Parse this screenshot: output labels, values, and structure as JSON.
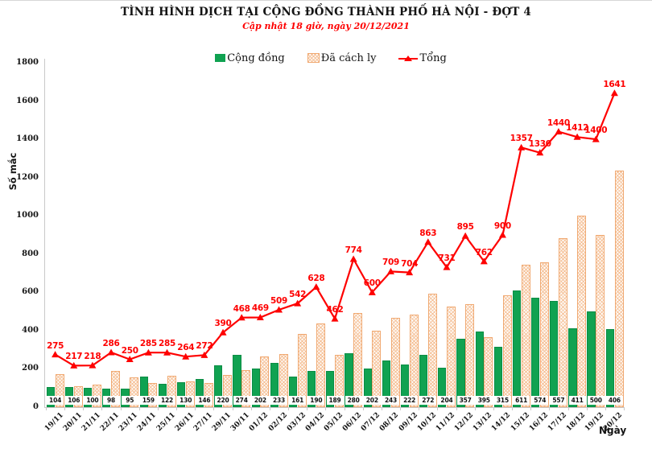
{
  "colors": {
    "bar_green": "#10a251",
    "bar_green_border": "#0b8c44",
    "bar_orange_border": "#f0a870",
    "bar_orange_pattern": "#f5c299",
    "line_red": "#fe0000",
    "axis_gray": "#c9c9c9",
    "text_black": "#141414"
  },
  "chart_data": {
    "type": "combo",
    "title": "TÌNH HÌNH DỊCH TẠI CỘNG ĐỒNG THÀNH PHỐ HÀ NỘI - ĐỢT 4",
    "subtitle": "Cập nhật 18 giờ, ngày 20/12/2021",
    "xlabel": "Ngày",
    "ylabel": "Số mắc",
    "ylim": [
      0,
      1800
    ],
    "ytick_step": 200,
    "grid": false,
    "legend_position": "top-center",
    "categories": [
      "19/11",
      "20/11",
      "21/11",
      "22/11",
      "23/11",
      "24/11",
      "25/11",
      "26/11",
      "27/11",
      "29/11",
      "30/11",
      "01/12",
      "02/12",
      "03/12",
      "04/12",
      "05/12",
      "06/12",
      "07/12",
      "08/12",
      "09/12",
      "10/12",
      "11/12",
      "12/12",
      "13/12",
      "14/12",
      "15/12",
      "16/12",
      "17/12",
      "18/12",
      "19/12",
      "20/12"
    ],
    "series": [
      {
        "name": "Cộng đồng",
        "type": "bar",
        "style": "solid",
        "color": "#10a251",
        "data_labels": "white-box-at-base",
        "values": [
          104,
          106,
          100,
          98,
          95,
          159,
          122,
          130,
          146,
          220,
          274,
          202,
          233,
          161,
          190,
          189,
          280,
          202,
          243,
          222,
          272,
          204,
          357,
          395,
          315,
          611,
          574,
          557,
          411,
          500,
          406
        ]
      },
      {
        "name": "Đã cách ly",
        "type": "bar",
        "style": "diagonal-hatch",
        "color": "#f0a870",
        "data_labels": false,
        "values": [
          171,
          111,
          118,
          188,
          155,
          126,
          163,
          134,
          126,
          170,
          194,
          267,
          276,
          381,
          438,
          273,
          494,
          398,
          466,
          482,
          591,
          527,
          538,
          367,
          585,
          746,
          756,
          883,
          1001,
          900,
          1235
        ]
      },
      {
        "name": "Tổng",
        "type": "line",
        "marker": "triangle",
        "color": "#fe0000",
        "data_labels": "above-points",
        "values": [
          275,
          217,
          218,
          286,
          250,
          285,
          285,
          264,
          272,
          390,
          468,
          469,
          509,
          542,
          628,
          462,
          774,
          600,
          709,
          704,
          863,
          731,
          895,
          762,
          900,
          1357,
          1330,
          1440,
          1412,
          1400,
          1641
        ]
      }
    ]
  }
}
